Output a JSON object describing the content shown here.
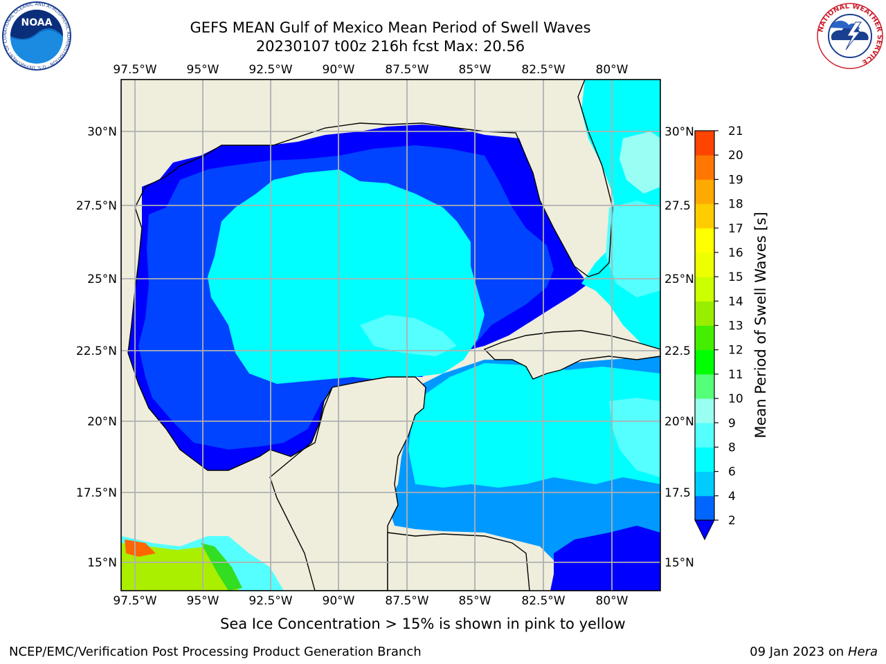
{
  "header": {
    "title": "GEFS MEAN Gulf of Mexico Mean Period of Swell Waves",
    "subtitle": "20230107 t00z 216h fcst   Max: 20.56"
  },
  "logos": {
    "left": "NOAA",
    "left_ring_text": "NATIONAL OCEANIC AND ATMOSPHERIC ADMINISTRATION · U.S. DEPARTMENT OF COMMERCE",
    "right_ring_text": "NATIONAL WEATHER SERVICE"
  },
  "map": {
    "lon_labels": [
      "97.5°W",
      "95°W",
      "92.5°W",
      "90°W",
      "87.5°W",
      "85°W",
      "82.5°W",
      "80°W"
    ],
    "lat_labels": [
      "30°N",
      "27.5°N",
      "25°N",
      "22.5°N",
      "20°N",
      "17.5°N",
      "15°N"
    ],
    "lat_labels_right": [
      "30°N",
      "27.5",
      "25°N",
      "22.5",
      "20°N",
      "17.5",
      "15°N"
    ],
    "colors": {
      "land": "#efeddc",
      "water_1": "#0000ff",
      "water_2": "#0044ff",
      "water_3": "#0099ff",
      "water_4": "#00ffff",
      "water_5": "#55ffff",
      "water_6": "#99fff5"
    }
  },
  "colorbar": {
    "label": "Mean Period of Swell Waves [s]",
    "ticks": [
      "2",
      "4",
      "6",
      "8",
      "9",
      "10",
      "11",
      "12",
      "13",
      "14",
      "15",
      "16",
      "17",
      "18",
      "19",
      "20",
      "21"
    ],
    "colors": [
      "#0066ff",
      "#00ccff",
      "#00ffff",
      "#55ffff",
      "#99fff0",
      "#55ff77",
      "#00ff00",
      "#44ee00",
      "#99ee00",
      "#ccff00",
      "#eeff00",
      "#ffff00",
      "#ffcc00",
      "#ffaa00",
      "#ff7700",
      "#ff4400",
      "#ff0000"
    ]
  },
  "notes": {
    "ice": "Sea Ice Concentration > 15% is shown in pink to yellow",
    "footer_left": "NCEP/EMC/Verification Post Processing Product Generation Branch",
    "footer_date": "09 Jan 2023 on ",
    "footer_host": "Hera"
  }
}
